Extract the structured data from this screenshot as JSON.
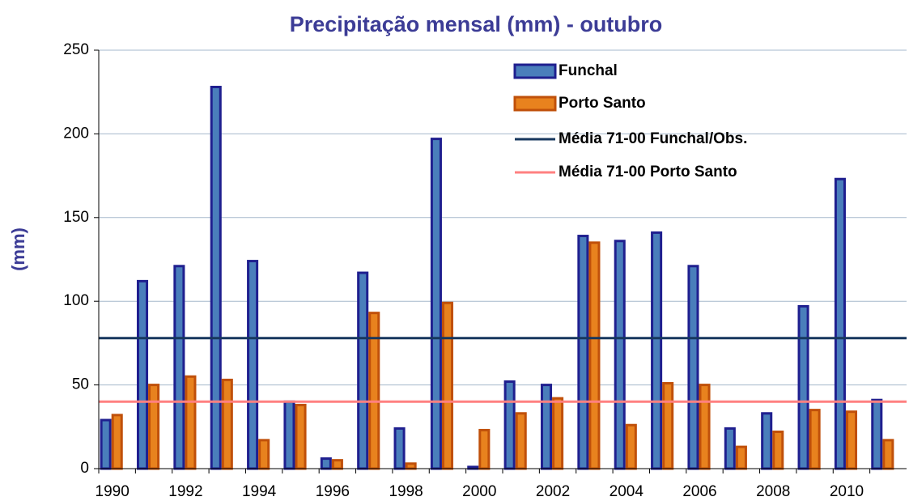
{
  "chart_data": {
    "type": "bar",
    "title": "Precipitação mensal (mm) - outubro",
    "y_label": "(mm)",
    "categories": [
      "1990",
      null,
      "1992",
      null,
      "1994",
      null,
      "1996",
      null,
      "1998",
      null,
      "2000",
      null,
      "2002",
      null,
      "2004",
      null,
      "2006",
      null,
      "2008",
      null,
      "2010",
      null
    ],
    "series": [
      {
        "name": "Funchal",
        "color": "#4a7ebb",
        "values": [
          29,
          112,
          121,
          228,
          124,
          40,
          6,
          117,
          24,
          197,
          1,
          52,
          50,
          139,
          136,
          141,
          121,
          24,
          33,
          97,
          173,
          41
        ]
      },
      {
        "name": "Porto Santo",
        "color": "#e8821e",
        "values": [
          32,
          50,
          55,
          53,
          17,
          38,
          5,
          93,
          3,
          99,
          23,
          33,
          42,
          135,
          26,
          51,
          50,
          13,
          22,
          35,
          34,
          17
        ]
      }
    ],
    "reference_lines": [
      {
        "name": "Média 71-00 Funchal/Obs.",
        "color": "#17375e",
        "value": 78
      },
      {
        "name": "Média 71-00 Porto Santo",
        "color": "#ff8080",
        "value": 40
      }
    ],
    "ylim": [
      0,
      250
    ],
    "yticks": [
      0,
      50,
      100,
      150,
      200,
      250
    ],
    "grid": true,
    "legend": "top-right"
  }
}
